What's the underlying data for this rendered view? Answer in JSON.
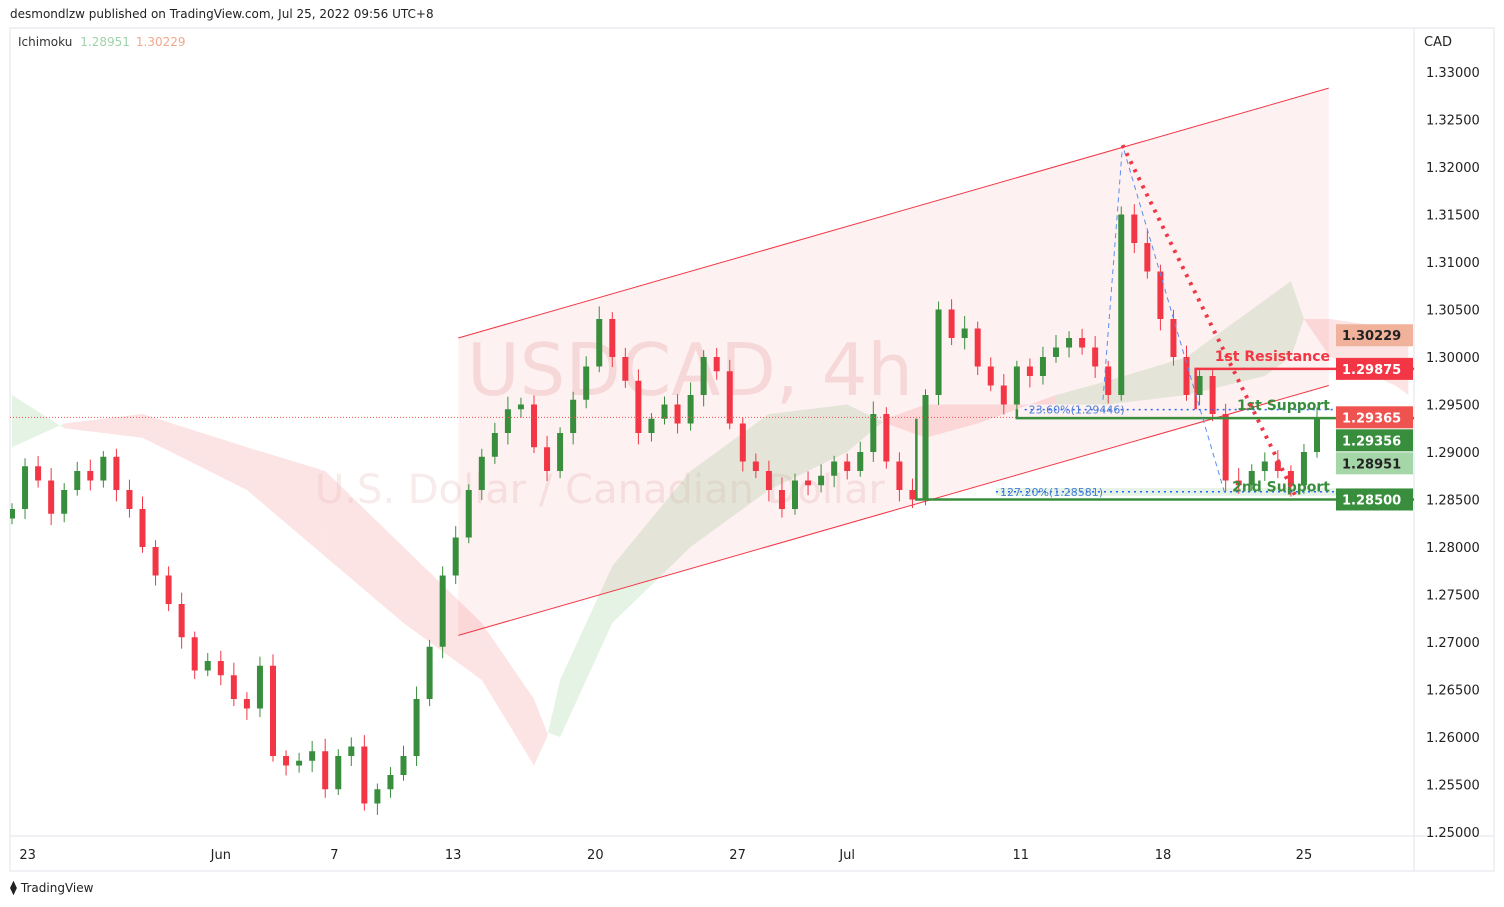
{
  "header": {
    "published": "desmondlzw published on TradingView.com, Jul 25, 2022 09:56 UTC+8"
  },
  "legend": {
    "name": "Ichimoku",
    "value_a": "1.28951",
    "value_b": "1.30229"
  },
  "currency": "CAD",
  "watermark": {
    "symbol": "USDCAD, 4h",
    "description": "U.S. Dollar / Canadian Dollar"
  },
  "logo": "TradingView",
  "colors": {
    "up": "#388e3c",
    "down": "#f23645",
    "cloud_up": "#a5d6a7",
    "cloud_down": "#f7b2b2",
    "channel": "#f23645",
    "fib": "#2962ff",
    "resistance": "#f23645",
    "support": "#388e3c"
  },
  "chart_data": {
    "type": "candlestick",
    "ylim": [
      1.25,
      1.33
    ],
    "y_ticks": [
      "1.33000",
      "1.32500",
      "1.32000",
      "1.31500",
      "1.31000",
      "1.30500",
      "1.30000",
      "1.29500",
      "1.29000",
      "1.28500",
      "1.28000",
      "1.27500",
      "1.27000",
      "1.26500",
      "1.26000",
      "1.25500",
      "1.25000"
    ],
    "x_ticks": [
      {
        "label": "23",
        "index": 1.2
      },
      {
        "label": "Jun",
        "index": 16
      },
      {
        "label": "7",
        "index": 24.7
      },
      {
        "label": "13",
        "index": 33.8
      },
      {
        "label": "20",
        "index": 44.7
      },
      {
        "label": "27",
        "index": 55.6
      },
      {
        "label": "Jul",
        "index": 64
      },
      {
        "label": "11",
        "index": 77.3
      },
      {
        "label": "18",
        "index": 88.2
      },
      {
        "label": "25",
        "index": 99
      }
    ],
    "closes": [
      1.284,
      1.2885,
      1.287,
      1.2835,
      1.286,
      1.288,
      1.287,
      1.2895,
      1.286,
      1.284,
      1.28,
      1.277,
      1.274,
      1.2705,
      1.267,
      1.268,
      1.2665,
      1.264,
      1.263,
      1.2675,
      1.258,
      1.257,
      1.2575,
      1.2585,
      1.2545,
      1.258,
      1.259,
      1.253,
      1.2545,
      1.256,
      1.258,
      1.264,
      1.2695,
      1.277,
      1.281,
      1.286,
      1.2895,
      1.292,
      1.2945,
      1.295,
      1.2905,
      1.288,
      1.292,
      1.2955,
      1.299,
      1.304,
      1.3,
      1.2975,
      1.292,
      1.2935,
      1.295,
      1.293,
      1.296,
      1.3,
      1.2985,
      1.293,
      1.289,
      1.288,
      1.286,
      1.284,
      1.287,
      1.2865,
      1.2875,
      1.289,
      1.288,
      1.29,
      1.294,
      1.289,
      1.286,
      1.285,
      1.296,
      1.305,
      1.302,
      1.303,
      1.299,
      1.297,
      1.295,
      1.299,
      1.298,
      1.3,
      1.301,
      1.302,
      1.301,
      1.299,
      1.296,
      1.315,
      1.312,
      1.309,
      1.304,
      1.3,
      1.296,
      1.298,
      1.294,
      1.287,
      1.2865,
      1.288,
      1.289,
      1.288,
      1.2865,
      1.29,
      1.2936
    ],
    "ichimoku_cloud": [
      [
        0,
        1.296,
        1.2905
      ],
      [
        4,
        1.2925,
        1.293
      ],
      [
        10,
        1.2915,
        1.294
      ],
      [
        18,
        1.286,
        1.2905
      ],
      [
        24,
        1.279,
        1.288
      ],
      [
        30,
        1.272,
        1.28
      ],
      [
        36,
        1.266,
        1.272
      ],
      [
        40,
        1.257,
        1.264
      ],
      [
        41,
        1.26,
        1.2605
      ],
      [
        42,
        1.266,
        1.26
      ],
      [
        46,
        1.278,
        1.272
      ],
      [
        52,
        1.288,
        1.28
      ],
      [
        58,
        1.294,
        1.286
      ],
      [
        64,
        1.295,
        1.29
      ],
      [
        67,
        1.293,
        1.2935
      ],
      [
        70,
        1.2915,
        1.295
      ],
      [
        74,
        1.293,
        1.295
      ],
      [
        80,
        1.296,
        1.295
      ],
      [
        84,
        1.2975,
        1.295
      ],
      [
        90,
        1.3,
        1.296
      ],
      [
        96,
        1.306,
        1.298
      ],
      [
        98,
        1.308,
        1.3
      ],
      [
        99,
        1.304,
        1.304
      ],
      [
        101,
        1.3,
        1.304
      ],
      [
        106,
        1.297,
        1.303
      ],
      [
        107,
        1.296,
        1.302
      ]
    ],
    "channel": {
      "upper": [
        [
          34.2,
          1.302
        ],
        [
          100.9,
          1.3283
        ]
      ],
      "lower": [
        [
          34.2,
          1.2707
        ],
        [
          100.9,
          1.297
        ]
      ]
    },
    "levels": [
      {
        "label": "1st Resistance",
        "price": 1.29875,
        "price_label": "1.29875",
        "from": 90.7,
        "base": 1.2945,
        "color": "#f23645"
      },
      {
        "label": "1st Support",
        "price": 1.29356,
        "price_label": "1.29356",
        "from": 77,
        "base": 1.2945,
        "color": "#388e3c"
      },
      {
        "label": "2nd Support",
        "price": 1.285,
        "price_label": "1.28500",
        "from": 69.3,
        "base": 1.2935,
        "color": "#388e3c"
      }
    ],
    "fibs": [
      {
        "label": "23.60%(1.29446)",
        "price": 1.29446,
        "from": 77.6
      },
      {
        "label": "127.20%(1.28581)",
        "price": 1.28581,
        "from": 75.4
      }
    ],
    "harmonic": [
      [
        83.6,
        1.2955
      ],
      [
        85.1,
        1.3223
      ],
      [
        92.9,
        1.2858
      ]
    ],
    "trendline": [
      [
        85.1,
        1.3223
      ],
      [
        98.3,
        1.2855
      ]
    ],
    "price_badges": [
      {
        "label": "1.30229",
        "price": 1.30229,
        "bg": "#f0b29a",
        "fg": "#222"
      },
      {
        "label": "1.29875",
        "price": 1.29875,
        "bg": "#f23645",
        "fg": "#fff"
      },
      {
        "label": "1.29365",
        "price": 1.29365,
        "bg": "#ef5350",
        "fg": "#fff"
      },
      {
        "label": "1.29356",
        "price": 1.29356,
        "bg": "#388e3c",
        "fg": "#fff",
        "offset": 1
      },
      {
        "label": "1.28951",
        "price": 1.28951,
        "bg": "#a5d6a7",
        "fg": "#222"
      },
      {
        "label": "1.28500",
        "price": 1.285,
        "bg": "#388e3c",
        "fg": "#fff"
      }
    ],
    "last_price": 1.29365
  }
}
